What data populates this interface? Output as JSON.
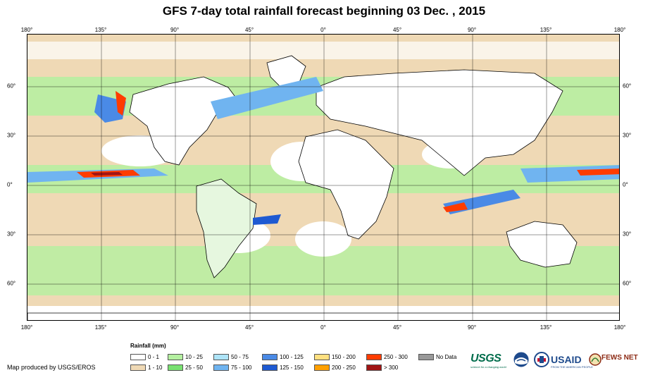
{
  "title": "GFS 7-day total rainfall forecast beginning 03 Dec. , 2015",
  "lon_ticks": [
    "180°",
    "135°",
    "90°",
    "45°",
    "0°",
    "45°",
    "90°",
    "135°",
    "180°"
  ],
  "lat_ticks": [
    "60°",
    "30°",
    "0°",
    "30°",
    "60°"
  ],
  "legend": {
    "title": "Rainfall (mm)",
    "items": [
      {
        "label": "0 - 1",
        "color": "#ffffff"
      },
      {
        "label": "1 - 10",
        "color": "#efd9b5"
      },
      {
        "label": "10 - 25",
        "color": "#b4f0a0"
      },
      {
        "label": "25 - 50",
        "color": "#78e070"
      },
      {
        "label": "50 - 75",
        "color": "#aee4f8"
      },
      {
        "label": "75 - 100",
        "color": "#70b4f0"
      },
      {
        "label": "100 - 125",
        "color": "#4a8ae6"
      },
      {
        "label": "125 - 150",
        "color": "#1e5ad2"
      },
      {
        "label": "150 - 200",
        "color": "#ffe080"
      },
      {
        "label": "200 - 250",
        "color": "#ffa000"
      },
      {
        "label": "250 - 300",
        "color": "#ff3c00"
      },
      {
        "label": "> 300",
        "color": "#a01414"
      },
      {
        "label": "No Data",
        "color": "#999999"
      }
    ]
  },
  "credit": "Map produced by USGS/EROS",
  "logos": {
    "usgs": "USGS",
    "usgs_tagline": "science for a changing world",
    "usaid": "USAID",
    "usaid_tagline": "FROM THE AMERICAN PEOPLE",
    "fews": "FEWS NET"
  },
  "colors": {
    "usgs": "#006c4b",
    "usaid": "#1e4a8c",
    "usaid_red": "#c8102e",
    "fews": "#8c2a14"
  }
}
